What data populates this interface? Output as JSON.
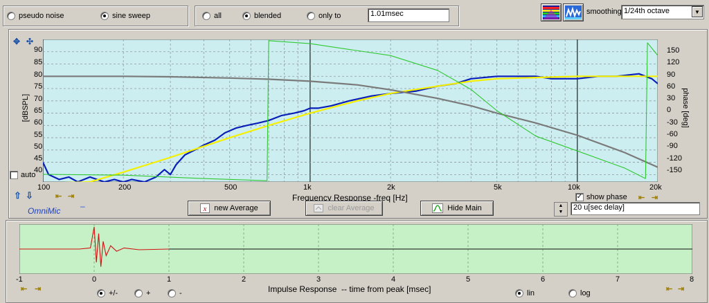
{
  "top_bar": {
    "signal_options": [
      {
        "label": "pseudo noise",
        "selected": false
      },
      {
        "label": "sine sweep",
        "selected": true
      }
    ],
    "window_options": [
      {
        "label": "all",
        "selected": false
      },
      {
        "label": "blended",
        "selected": true
      },
      {
        "label": "only to",
        "selected": false
      }
    ],
    "window_time": "1.01msec",
    "smoothing_label": "smoothing",
    "smoothing_value": "1/24th octave"
  },
  "freq_panel": {
    "y_left_label": "[dBSPL]",
    "y_right_label": "phase [deg]",
    "x_label": "Frequency Response -freq [Hz]",
    "y_left_ticks": [
      "90",
      "85",
      "80",
      "75",
      "70",
      "65",
      "60",
      "55",
      "50",
      "45",
      "40"
    ],
    "y_right_ticks": [
      "150",
      "120",
      "90",
      "60",
      "30",
      "0",
      "-30",
      "-60",
      "-90",
      "-120",
      "-150"
    ],
    "x_ticks": [
      "100",
      "200",
      "500",
      "1k",
      "2k",
      "5k",
      "10k",
      "20k"
    ],
    "auto_label": "auto",
    "auto_checked": false,
    "show_phase_label": "show phase",
    "show_phase_checked": true,
    "mic_label": "OmniMic",
    "mic_dash": "–",
    "delay_value": "20 u[sec delay]",
    "buttons": {
      "new_average": "new Average",
      "clear_average": "clear Average",
      "hide_main": "Hide Main"
    },
    "colors": {
      "plot_bg": "#cdeef0",
      "magnitude": "#0a1fb8",
      "smoothed": "#f5f000",
      "phase": "#2fc82f",
      "reference": "#7a7a7a"
    }
  },
  "chart_data": [
    {
      "type": "line",
      "title": "",
      "xlabel": "Frequency Response -freq [Hz]",
      "ylabel": "[dBSPL]",
      "y2label": "phase [deg]",
      "xscale": "log",
      "xlim": [
        100,
        20000
      ],
      "ylim": [
        37,
        95
      ],
      "y2lim": [
        -168,
        168
      ],
      "grid": true,
      "series": [
        {
          "axis": "left",
          "points": [
            [
              100,
              45
            ],
            [
              105,
              40
            ],
            [
              115,
              38
            ],
            [
              125,
              39
            ],
            [
              135,
              37
            ],
            [
              150,
              39
            ],
            [
              170,
              37
            ],
            [
              185,
              38
            ],
            [
              200,
              37
            ],
            [
              215,
              38
            ],
            [
              240,
              37
            ],
            [
              265,
              39
            ],
            [
              285,
              42
            ],
            [
              300,
              40
            ],
            [
              315,
              44
            ],
            [
              340,
              48
            ],
            [
              370,
              50
            ],
            [
              400,
              52
            ],
            [
              440,
              54
            ],
            [
              480,
              57
            ],
            [
              530,
              59
            ],
            [
              580,
              60
            ],
            [
              640,
              61
            ],
            [
              700,
              62
            ],
            [
              780,
              64
            ],
            [
              870,
              65
            ],
            [
              950,
              66
            ],
            [
              1000,
              67
            ],
            [
              1070,
              67
            ],
            [
              1200,
              68
            ],
            [
              1400,
              70
            ],
            [
              1700,
              72
            ],
            [
              2000,
              73
            ],
            [
              2500,
              74
            ],
            [
              3000,
              76
            ],
            [
              3500,
              77
            ],
            [
              4000,
              79
            ],
            [
              5000,
              80
            ],
            [
              6000,
              80
            ],
            [
              7000,
              80
            ],
            [
              8000,
              79
            ],
            [
              10000,
              79
            ],
            [
              12000,
              80
            ],
            [
              14000,
              80
            ],
            [
              17000,
              81
            ],
            [
              19000,
              79
            ],
            [
              20000,
              77
            ]
          ]
        },
        {
          "axis": "left",
          "points": [
            [
              100,
              32
            ],
            [
              150,
              37
            ],
            [
              200,
              41
            ],
            [
              300,
              47
            ],
            [
              500,
              55
            ],
            [
              700,
              60
            ],
            [
              1000,
              65
            ],
            [
              1500,
              70
            ],
            [
              2000,
              73
            ],
            [
              3000,
              76
            ],
            [
              4000,
              78
            ],
            [
              5000,
              79
            ],
            [
              7000,
              79.5
            ],
            [
              10000,
              80
            ],
            [
              15000,
              80
            ],
            [
              20000,
              80
            ]
          ]
        },
        {
          "axis": "left",
          "points": [
            [
              100,
              80
            ],
            [
              200,
              80
            ],
            [
              300,
              79.8
            ],
            [
              500,
              79.3
            ],
            [
              700,
              78.8
            ],
            [
              1000,
              78
            ],
            [
              1500,
              76.5
            ],
            [
              2000,
              74.5
            ],
            [
              3000,
              71
            ],
            [
              4000,
              68
            ],
            [
              5000,
              65
            ],
            [
              7000,
              61
            ],
            [
              10000,
              56
            ],
            [
              15000,
              49
            ],
            [
              20000,
              43
            ]
          ]
        },
        {
          "axis": "right",
          "points": [
            [
              100,
              -150
            ],
            [
              200,
              -152
            ],
            [
              400,
              -160
            ],
            [
              690,
              -165
            ],
            [
              700,
              165
            ],
            [
              1000,
              158
            ],
            [
              2000,
              130
            ],
            [
              3000,
              95
            ],
            [
              4000,
              50
            ],
            [
              5000,
              0
            ],
            [
              7000,
              -60
            ],
            [
              10000,
              -95
            ],
            [
              15000,
              -135
            ],
            [
              18000,
              -160
            ],
            [
              18300,
              160
            ],
            [
              20000,
              130
            ]
          ]
        }
      ]
    },
    {
      "type": "line",
      "title": "",
      "xlabel": "Impulse Response  -- time from peak [msec]",
      "ylabel": "",
      "xlim": [
        -1,
        8
      ],
      "x_ticks": [
        "-1",
        "0",
        "1",
        "2",
        "3",
        "4",
        "5",
        "6",
        "7",
        "8"
      ],
      "series": [
        {
          "points": [
            [
              -1,
              0
            ],
            [
              -0.2,
              0
            ],
            [
              -0.05,
              0.05
            ],
            [
              0,
              1
            ],
            [
              0.03,
              -0.6
            ],
            [
              0.06,
              0.7
            ],
            [
              0.09,
              -0.8
            ],
            [
              0.12,
              0.35
            ],
            [
              0.16,
              -0.3
            ],
            [
              0.22,
              0.15
            ],
            [
              0.3,
              -0.1
            ],
            [
              0.4,
              0.05
            ],
            [
              0.6,
              -0.03
            ],
            [
              1.0,
              0
            ]
          ]
        },
        {
          "points": [
            [
              1.0,
              0
            ],
            [
              8,
              0
            ]
          ]
        }
      ]
    }
  ],
  "impulse_panel": {
    "x_label": "Impulse Response  -- time from peak [msec]",
    "polarity_options": [
      {
        "label": "+/-",
        "selected": true
      },
      {
        "label": "+",
        "selected": false
      },
      {
        "label": "-",
        "selected": false
      }
    ],
    "scale_options": [
      {
        "label": "lin",
        "selected": true
      },
      {
        "label": "log",
        "selected": false
      }
    ],
    "colors": {
      "plot_bg": "#c6f1c6",
      "pre": "#d01010",
      "post": "#101010"
    }
  }
}
